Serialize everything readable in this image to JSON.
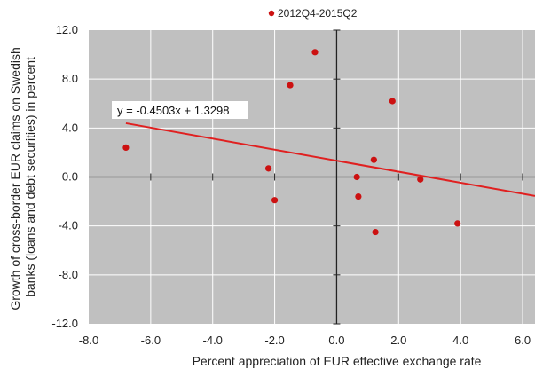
{
  "chart_data": {
    "type": "scatter",
    "title": "",
    "xlabel": "Percent appreciation of EUR effective exchange rate",
    "ylabel": "Growth of cross-border EUR claims on Swedish banks (loans and debt securities) in percent",
    "ylabel_lines": [
      "Growth of cross-border EUR claims on Swedish",
      "banks (loans and debt securities) in percent"
    ],
    "xlim": [
      -8.0,
      6.4
    ],
    "ylim": [
      -12.0,
      12.0
    ],
    "xticks": [
      -8.0,
      -6.0,
      -4.0,
      -2.0,
      0.0,
      2.0,
      4.0,
      6.0
    ],
    "yticks": [
      -12.0,
      -8.0,
      -4.0,
      0.0,
      4.0,
      8.0,
      12.0
    ],
    "xtick_labels": [
      "-8.0",
      "-6.0",
      "-4.0",
      "-2.0",
      "0.0",
      "2.0",
      "4.0",
      "6.0"
    ],
    "ytick_labels": [
      "-12.0",
      "-8.0",
      "-4.0",
      "0.0",
      "4.0",
      "8.0",
      "12.0"
    ],
    "grid": true,
    "legend_position": "top-center",
    "series": [
      {
        "name": "2012Q4-2015Q2",
        "color": "#cc1111",
        "points": [
          {
            "x": -6.8,
            "y": 2.4
          },
          {
            "x": -2.2,
            "y": 0.7
          },
          {
            "x": -2.0,
            "y": -1.9
          },
          {
            "x": -1.5,
            "y": 7.5
          },
          {
            "x": -0.7,
            "y": 10.2
          },
          {
            "x": 0.65,
            "y": 0.0
          },
          {
            "x": 0.7,
            "y": -1.6
          },
          {
            "x": 1.2,
            "y": 1.4
          },
          {
            "x": 1.25,
            "y": -4.5
          },
          {
            "x": 1.8,
            "y": 6.2
          },
          {
            "x": 2.7,
            "y": -0.2
          },
          {
            "x": 3.9,
            "y": -3.8
          }
        ]
      }
    ],
    "trendline": {
      "slope": -0.4503,
      "intercept": 1.3298,
      "x_from": -6.8,
      "x_to": 6.4,
      "color": "#e02020",
      "label": "y = -0.4503x + 1.3298"
    },
    "colors": {
      "plot_background": "#c0c0c0",
      "grid": "#ffffff",
      "axis": "#222222"
    }
  }
}
